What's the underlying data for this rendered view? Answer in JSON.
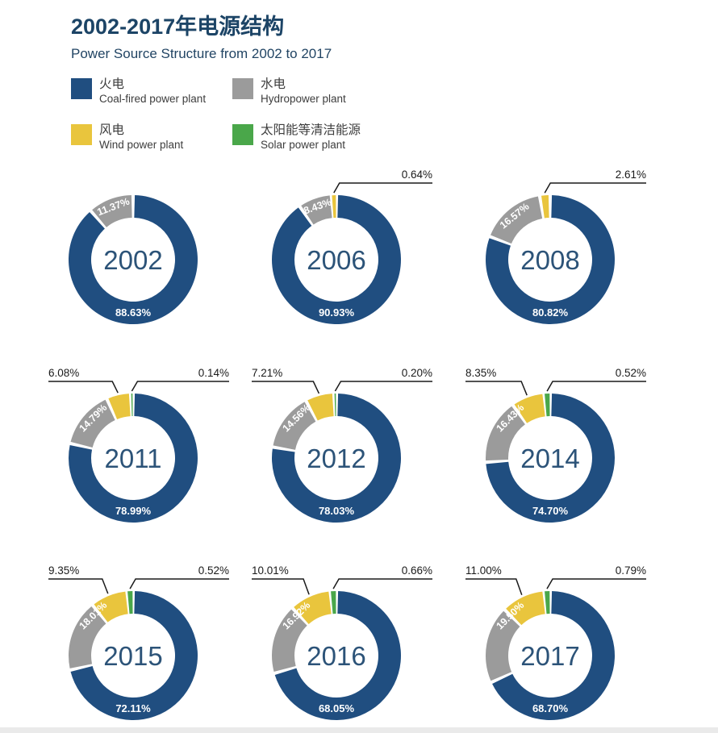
{
  "header": {
    "title_zh": "2002-2017年电源结构",
    "title_en": "Power Source Structure from 2002 to 2017"
  },
  "legend": {
    "items": [
      {
        "id": "coal",
        "label_zh": "火电",
        "label_en": "Coal-fired power plant",
        "color": "#204E80"
      },
      {
        "id": "hydro",
        "label_zh": "水电",
        "label_en": "Hydropower plant",
        "color": "#9B9B9B"
      },
      {
        "id": "wind",
        "label_zh": "风电",
        "label_en": "Wind power plant",
        "color": "#E9C53D"
      },
      {
        "id": "solar",
        "label_zh": "太阳能等清洁能源",
        "label_en": "Solar power plant",
        "color": "#4AA74A"
      }
    ]
  },
  "chart_data": {
    "type": "pie",
    "subtype": "donut_small_multiples",
    "unit": "%",
    "title": "2002-2017年电源结构",
    "subtitle": "Power Source Structure from 2002 to 2017",
    "categories": [
      "coal",
      "hydro",
      "wind",
      "solar"
    ],
    "colors": {
      "coal": "#204E80",
      "hydro": "#9B9B9B",
      "wind": "#E9C53D",
      "solar": "#4AA74A"
    },
    "label_text_color": "#1a1a1a",
    "year_text_color": "#2C5378",
    "inside_label_color": "#ffffff",
    "charts": [
      {
        "year": "2002",
        "coal": 88.63,
        "hydro": 11.37,
        "wind": null,
        "solar": null
      },
      {
        "year": "2006",
        "coal": 90.93,
        "hydro": 8.43,
        "wind": 0.64,
        "solar": null
      },
      {
        "year": "2008",
        "coal": 80.82,
        "hydro": 16.57,
        "wind": 2.61,
        "solar": null
      },
      {
        "year": "2011",
        "coal": 78.99,
        "hydro": 14.79,
        "wind": 6.08,
        "solar": 0.14
      },
      {
        "year": "2012",
        "coal": 78.03,
        "hydro": 14.56,
        "wind": 7.21,
        "solar": 0.2
      },
      {
        "year": "2014",
        "coal": 74.7,
        "hydro": 16.43,
        "wind": 8.35,
        "solar": 0.52
      },
      {
        "year": "2015",
        "coal": 72.11,
        "hydro": 18.01,
        "wind": 9.35,
        "solar": 0.52
      },
      {
        "year": "2016",
        "coal": 68.05,
        "hydro": 16.92,
        "wind": 10.01,
        "solar": 0.66
      },
      {
        "year": "2017",
        "coal": 68.7,
        "hydro": 19.5,
        "wind": 11.0,
        "solar": 0.79
      }
    ]
  }
}
